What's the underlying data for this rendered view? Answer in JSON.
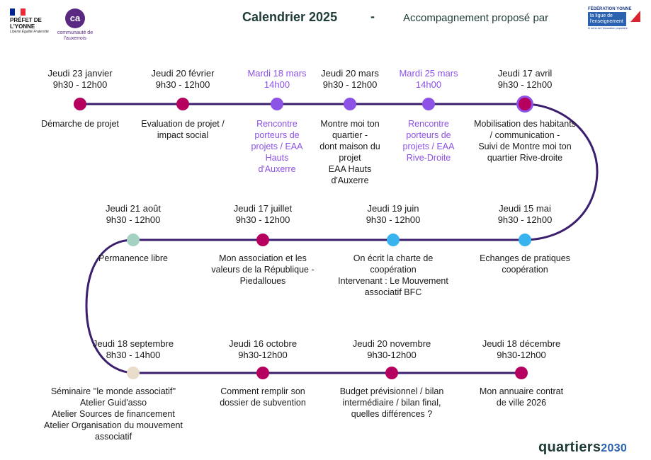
{
  "header": {
    "title": "Calendrier 2025",
    "dash": "-",
    "subtitle": "Accompagnement proposé par"
  },
  "logos": {
    "prefet": {
      "name": "PRÉFET DE L'YONNE",
      "motto": "Liberté Égalité Fraternité"
    },
    "communaute": {
      "text": "communauté de l'auxerrois"
    },
    "ligue": {
      "top": "FÉDÉRATION YONNE",
      "name": "la ligue de l'enseignement",
      "tag": "le sens de l'éducation populaire"
    },
    "quartiers": {
      "word": "quartiers",
      "year": "2030"
    }
  },
  "colors": {
    "line": "#3b1f6e",
    "magenta": "#b5005f",
    "violet": "#8d52e6",
    "blue": "#39b3f0",
    "mint": "#a3d2c2",
    "beige": "#e8dccb"
  },
  "events": [
    {
      "date": "Jeudi 23 janvier",
      "time": "9h30 - 12h00",
      "description": "Démarche de projet",
      "color": "magenta"
    },
    {
      "date": "Jeudi 20 février",
      "time": "9h30 - 12h00",
      "description": "Evaluation de projet /\nimpact social",
      "color": "magenta"
    },
    {
      "date": "Mardi 18 mars",
      "time": "14h00",
      "description": "Rencontre\nporteurs de\nprojets /  EAA\nHauts\nd'Auxerre",
      "color": "violet"
    },
    {
      "date": "Jeudi 20 mars",
      "time": "9h30 - 12h00",
      "description": "Montre moi ton\nquartier -\ndont maison du\nprojet\nEAA Hauts\nd'Auxerre",
      "color": "violet"
    },
    {
      "date": "Mardi 25 mars",
      "time": "14h00",
      "description": "Rencontre\nporteurs de\nprojets /  EAA\nRive-Droite",
      "color": "violet"
    },
    {
      "date": "Jeudi 17 avril",
      "time": "9h30 - 12h00",
      "description": "Mobilisation des habitants\n/ communication -\nSuivi de Montre moi ton\nquartier Rive-droite",
      "color": "violet"
    },
    {
      "date": "Jeudi 15 mai",
      "time": "9h30 - 12h00",
      "description": "Echanges de pratiques\ncoopération",
      "color": "blue"
    },
    {
      "date": "Jeudi 19 juin",
      "time": "9h30 - 12h00",
      "description": "On écrit la charte de\ncoopération\nIntervenant : Le Mouvement\nassociatif BFC",
      "color": "blue"
    },
    {
      "date": "Jeudi 17 juillet",
      "time": "9h30 - 12h00",
      "description": "Mon association et les\nvaleurs de la République -\nPiedalloues",
      "color": "magenta"
    },
    {
      "date": "Jeudi 21 août",
      "time": "9h30 - 12h00",
      "description": "Permanence libre",
      "color": "mint"
    },
    {
      "date": "Jeudi 18 septembre",
      "time": "8h30 - 14h00",
      "description": "Séminaire ''le monde associatif''\nAtelier Guid'asso\nAtelier Sources de financement\nAtelier Organisation du mouvement associatif",
      "color": "beige"
    },
    {
      "date": "Jeudi 16 octobre",
      "time": "9h30-12h00",
      "description": "Comment remplir son\ndossier de subvention",
      "color": "magenta"
    },
    {
      "date": "Jeudi 20 novembre",
      "time": "9h30-12h00",
      "description": "Budget prévisionnel / bilan\nintermédiaire / bilan final,\nquelles différences ?",
      "color": "magenta"
    },
    {
      "date": "Jeudi 18 décembre",
      "time": "9h30-12h00",
      "description": "Mon annuaire contrat\nde ville  2026",
      "color": "magenta"
    }
  ]
}
